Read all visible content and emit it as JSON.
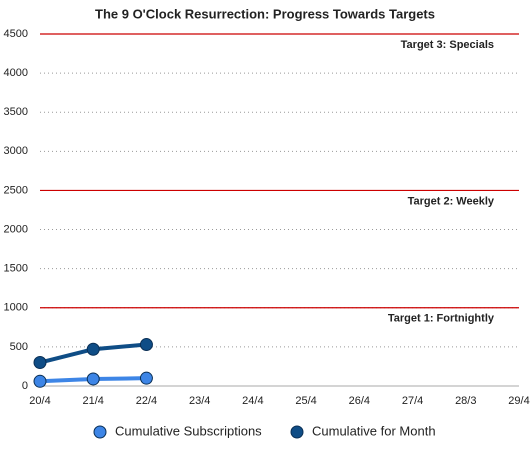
{
  "chart_data": {
    "type": "line",
    "title": "The 9 O'Clock Resurrection: Progress Towards Targets",
    "categories": [
      "20/4",
      "21/4",
      "22/4",
      "23/4",
      "24/4",
      "25/4",
      "26/4",
      "27/4",
      "28/3",
      "29/4"
    ],
    "series": [
      {
        "name": "Cumulative Subscriptions",
        "color": "#3d85e6",
        "values": [
          60,
          90,
          100,
          null,
          null,
          null,
          null,
          null,
          null,
          null
        ]
      },
      {
        "name": "Cumulative for Month",
        "color": "#0f4d86",
        "values": [
          300,
          470,
          530,
          null,
          null,
          null,
          null,
          null,
          null,
          null
        ]
      }
    ],
    "targets": [
      {
        "value": 4500,
        "label": "Target 3:  Specials",
        "color": "#cc0000"
      },
      {
        "value": 2500,
        "label": "Target 2:  Weekly",
        "color": "#cc0000"
      },
      {
        "value": 1000,
        "label": "Target 1:  Fortnightly",
        "color": "#cc0000"
      }
    ],
    "ylim": [
      0,
      4500
    ],
    "yticks": [
      0,
      500,
      1000,
      1500,
      2000,
      2500,
      3000,
      3500,
      4000,
      4500
    ],
    "grid": true,
    "legend": "bottom"
  }
}
